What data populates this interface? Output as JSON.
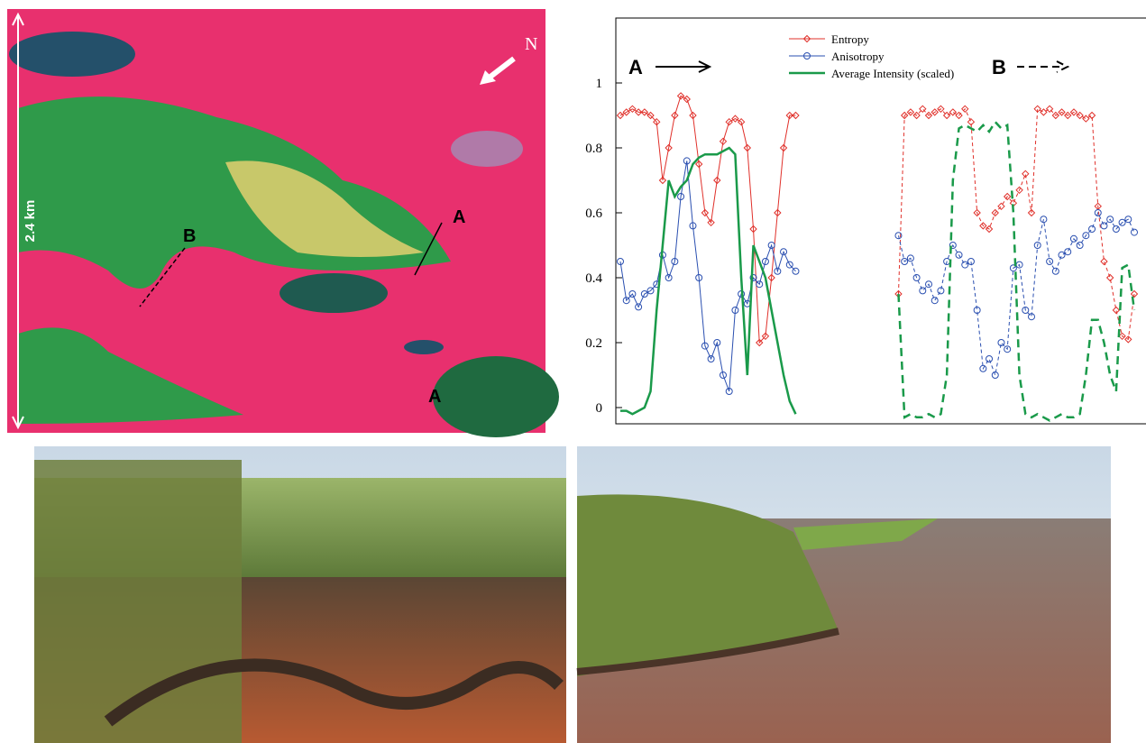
{
  "map": {
    "north": "N",
    "scale": "2.4 km",
    "labels": [
      "A",
      "B",
      "A"
    ]
  },
  "chart_data": {
    "type": "line",
    "annotations": [
      "A",
      "B"
    ],
    "ylim": [
      -0.05,
      1.2
    ],
    "yticks": [
      0,
      0.2,
      0.4,
      0.6,
      0.8,
      1
    ],
    "series": [
      {
        "name": "Entropy",
        "color": "#e0302a",
        "values": [
          0.9,
          0.91,
          0.92,
          0.91,
          0.91,
          0.9,
          0.88,
          0.7,
          0.8,
          0.9,
          0.96,
          0.95,
          0.9,
          0.75,
          0.6,
          0.57,
          0.7,
          0.82,
          0.88,
          0.89,
          0.88,
          0.8,
          0.55,
          0.2,
          0.22,
          0.4,
          0.6,
          0.8,
          0.9,
          0.9,
          null,
          null,
          null,
          null,
          null,
          null,
          null,
          null,
          null,
          null,
          null,
          null,
          null,
          null,
          null,
          null,
          0.35,
          0.9,
          0.91,
          0.9,
          0.92,
          0.9,
          0.91,
          0.92,
          0.9,
          0.91,
          0.9,
          0.92,
          0.88,
          0.6,
          0.56,
          0.55,
          0.6,
          0.62,
          0.65,
          0.63,
          0.67,
          0.72,
          0.6,
          0.92,
          0.91,
          0.92,
          0.9,
          0.91,
          0.9,
          0.91,
          0.9,
          0.89,
          0.9,
          0.62,
          0.45,
          0.4,
          0.3,
          0.22,
          0.21,
          0.35
        ]
      },
      {
        "name": "Anisotropy",
        "color": "#2a4fb0",
        "values": [
          0.45,
          0.33,
          0.35,
          0.31,
          0.35,
          0.36,
          0.38,
          0.47,
          0.4,
          0.45,
          0.65,
          0.76,
          0.56,
          0.4,
          0.19,
          0.15,
          0.2,
          0.1,
          0.05,
          0.3,
          0.35,
          0.32,
          0.4,
          0.38,
          0.45,
          0.5,
          0.42,
          0.48,
          0.44,
          0.42,
          null,
          null,
          null,
          null,
          null,
          null,
          null,
          null,
          null,
          null,
          null,
          null,
          null,
          null,
          null,
          null,
          0.53,
          0.45,
          0.46,
          0.4,
          0.36,
          0.38,
          0.33,
          0.36,
          0.45,
          0.5,
          0.47,
          0.44,
          0.45,
          0.3,
          0.12,
          0.15,
          0.1,
          0.2,
          0.18,
          0.43,
          0.44,
          0.3,
          0.28,
          0.5,
          0.58,
          0.45,
          0.42,
          0.47,
          0.48,
          0.52,
          0.5,
          0.53,
          0.55,
          0.6,
          0.56,
          0.58,
          0.55,
          0.57,
          0.58,
          0.54
        ]
      },
      {
        "name": "Average Intensity (scaled)",
        "color": "#1a9a4a",
        "values": [
          -0.01,
          -0.01,
          -0.02,
          -0.01,
          0,
          0.05,
          0.3,
          0.5,
          0.7,
          0.65,
          0.68,
          0.7,
          0.75,
          0.77,
          0.78,
          0.78,
          0.78,
          0.79,
          0.8,
          0.78,
          0.4,
          0.1,
          0.5,
          0.45,
          0.4,
          0.3,
          0.2,
          0.1,
          0.02,
          -0.02,
          null,
          null,
          null,
          null,
          null,
          null,
          null,
          null,
          null,
          null,
          null,
          null,
          null,
          null,
          null,
          null,
          0.35,
          -0.03,
          -0.02,
          -0.03,
          -0.03,
          -0.02,
          -0.03,
          -0.02,
          0.1,
          0.7,
          0.86,
          0.87,
          0.86,
          0.85,
          0.87,
          0.85,
          0.88,
          0.86,
          0.87,
          0.6,
          0.1,
          -0.02,
          -0.03,
          -0.02,
          -0.03,
          -0.04,
          -0.03,
          -0.02,
          -0.03,
          -0.03,
          -0.02,
          0.1,
          0.27,
          0.27,
          0.2,
          0.1,
          0.05,
          0.43,
          0.44,
          0.3
        ]
      }
    ]
  }
}
